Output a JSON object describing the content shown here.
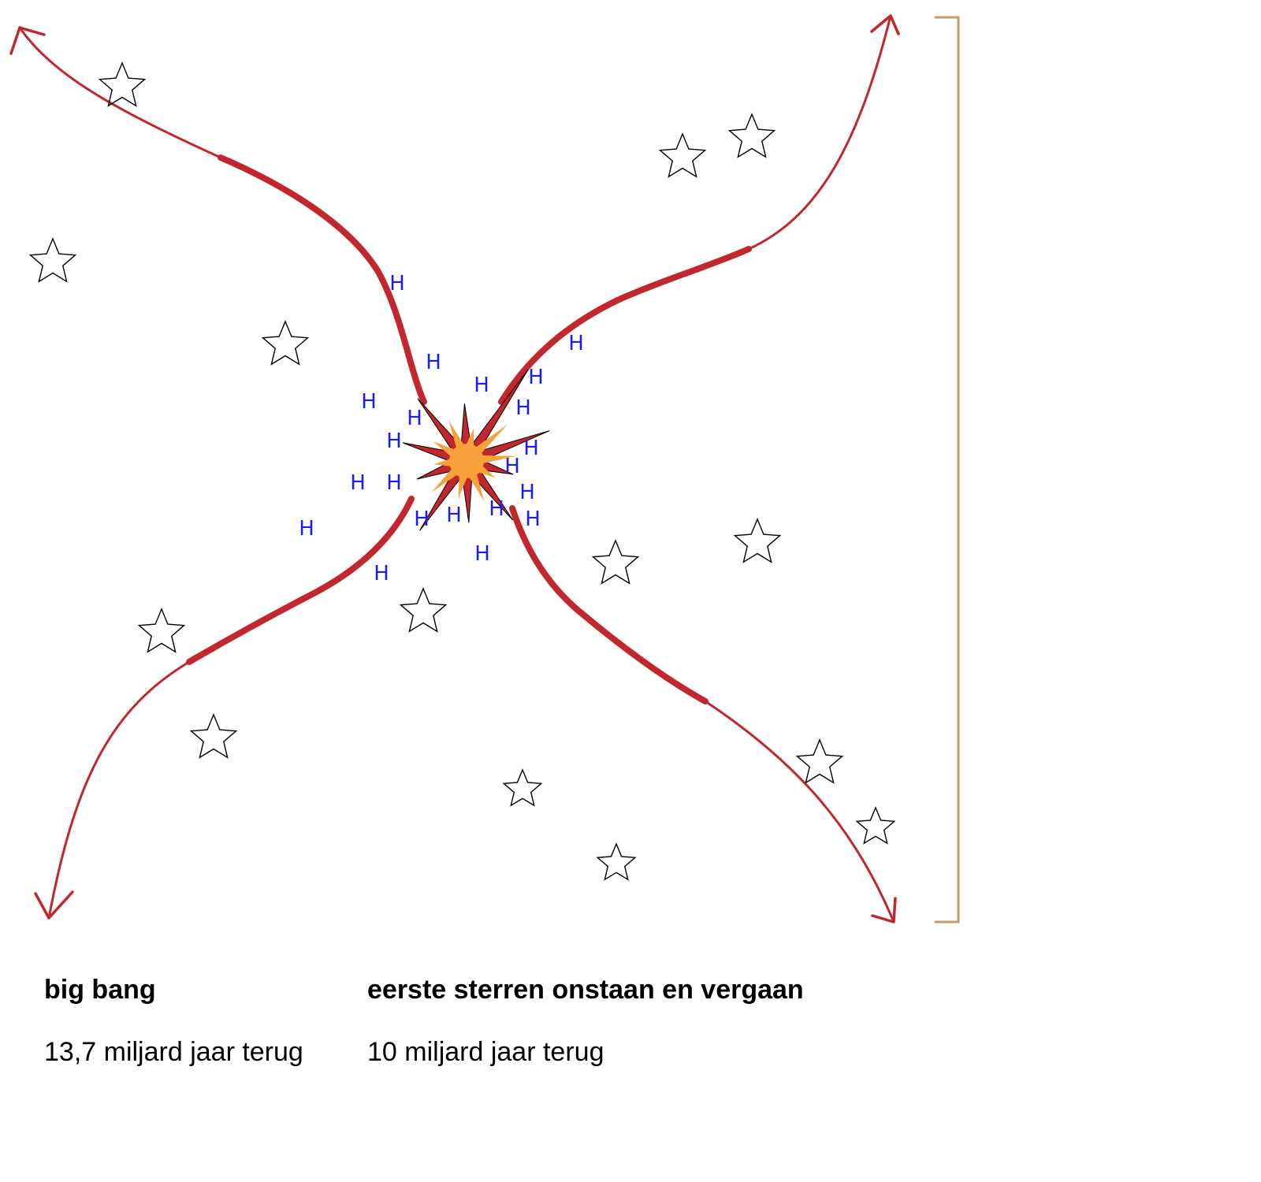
{
  "colors": {
    "arrow": "#c1272d",
    "h_label": "#1a1aff",
    "star_stroke": "#000000",
    "bracket": "#c49a6c",
    "burst_outer": "#c1272d",
    "burst_inner": "#f7a13a"
  },
  "h_symbol": "H",
  "captions": {
    "big_bang": {
      "title": "big bang",
      "time": "13,7 miljard jaar terug"
    },
    "first_stars": {
      "title": "eerste sterren onstaan en vergaan",
      "time": "10 miljard jaar terug"
    }
  },
  "icons": {
    "burst": "explosion-icon",
    "star": "star-outline-icon",
    "bracket": "time-bracket"
  }
}
